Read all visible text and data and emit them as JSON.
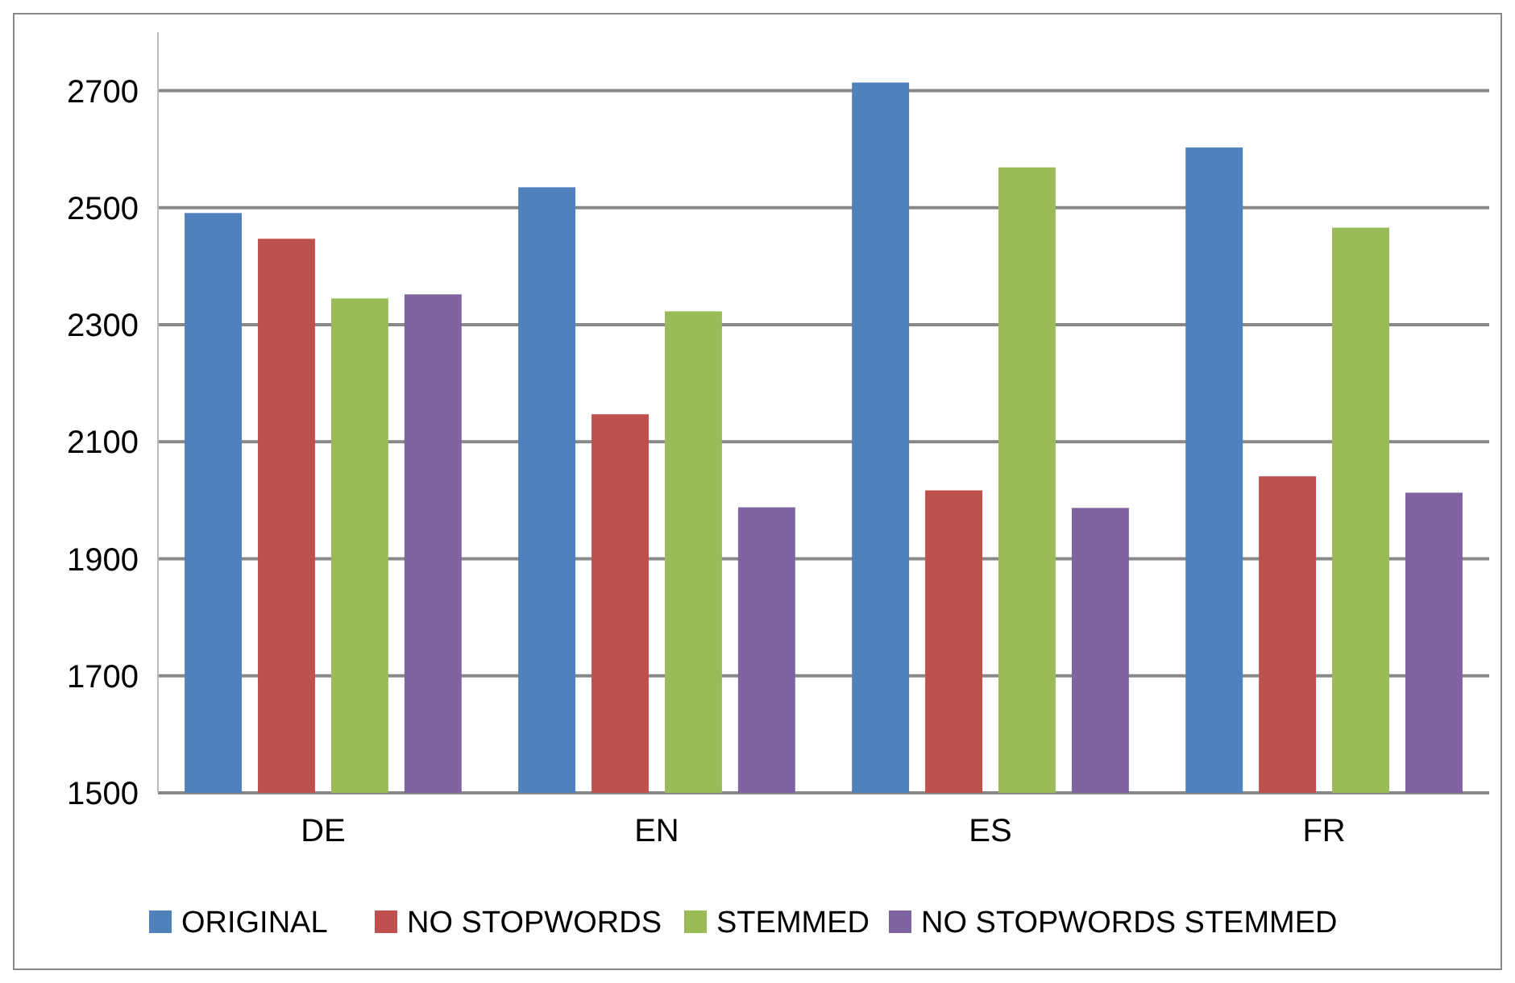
{
  "chart_data": {
    "type": "bar",
    "categories": [
      "DE",
      "EN",
      "ES",
      "FR"
    ],
    "series": [
      {
        "name": "ORIGINAL",
        "color": "#4f81bd",
        "values": [
          2491,
          2535,
          2714,
          2603
        ]
      },
      {
        "name": "NO STOPWORDS",
        "color": "#c0504d",
        "values": [
          2447,
          2147,
          2017,
          2041
        ]
      },
      {
        "name": "STEMMED",
        "color": "#9bbb59",
        "values": [
          2345,
          2323,
          2569,
          2466
        ]
      },
      {
        "name": "NO STOPWORDS STEMMED",
        "color": "#8064a2",
        "values": [
          2352,
          1988,
          1987,
          2013
        ]
      }
    ],
    "ylim": [
      1500,
      2800
    ],
    "yticks": [
      1500,
      1700,
      1900,
      2100,
      2300,
      2500,
      2700
    ],
    "grid": "y",
    "legend": "bottom"
  }
}
